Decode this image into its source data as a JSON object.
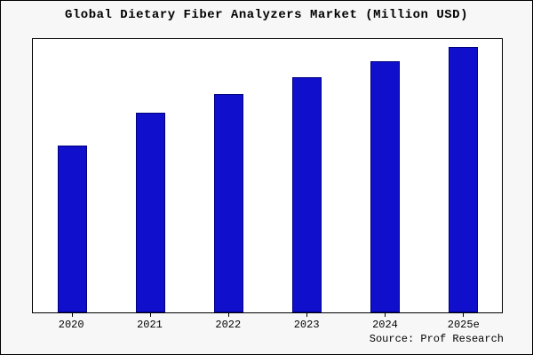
{
  "title": "Global Dietary Fiber Analyzers Market (Million USD)",
  "source": "Source: Prof Research",
  "chart_data": {
    "type": "bar",
    "title": "Global Dietary Fiber Analyzers Market (Million USD)",
    "categories": [
      "2020",
      "2021",
      "2022",
      "2023",
      "2024",
      "2025e"
    ],
    "values": [
      61,
      73,
      80,
      86,
      92,
      97
    ],
    "xlabel": "",
    "ylabel": "",
    "ylim": [
      0,
      100
    ],
    "grid": false,
    "legend": false,
    "bar_color": "#1010cc",
    "bar_edge_color": "#000080",
    "annotation": "Source: Prof Research"
  }
}
